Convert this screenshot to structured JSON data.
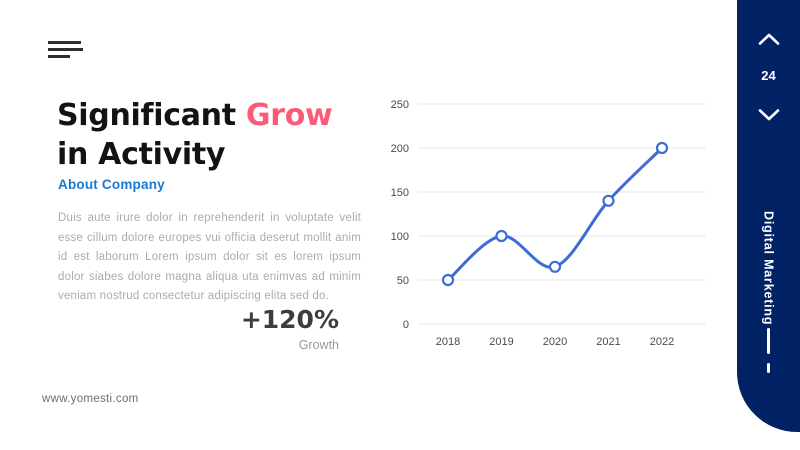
{
  "slide": {
    "title": {
      "line1_prefix": "Significant ",
      "line1_accent": "Grow",
      "line2": "in Activity"
    },
    "subtitle": "About Company",
    "body_text": "Duis aute irure dolor in reprehenderit in voluptate velit esse cillum dolore europes vui officia deserut mollit anim id est laborum Lorem ipsum dolor sit es lorem ipsum dolor siabes dolore magna aliqua uta enimvas ad minim veniam nostrud consectetur adipiscing elita sed do.",
    "stat": {
      "value": "+120%",
      "label": "Growth"
    },
    "website": "www.yomesti.com"
  },
  "sidebar": {
    "page_number": "24",
    "vertical_label": "Digital Marketing"
  },
  "icons": {
    "menu": "hamburger-icon",
    "nav_up": "chevron-up-icon",
    "nav_down": "chevron-down-icon",
    "chart_marker": "open-circle-marker"
  },
  "colors": {
    "accent_pink": "#FC5B77",
    "subtitle_blue": "#1779D2",
    "sidebar_navy": "#022266",
    "chart_line": "#3D6CD7",
    "gridline": "#E7E7E7",
    "tick_label": "#4A4A4A",
    "marker_fill": "#FFFFFF"
  },
  "chart_data": {
    "type": "line",
    "categories": [
      "2018",
      "2019",
      "2020",
      "2021",
      "2022"
    ],
    "series": [
      {
        "name": "Activity",
        "values": [
          50,
          100,
          65,
          140,
          200
        ]
      }
    ],
    "title": "",
    "xlabel": "",
    "ylabel": "",
    "ylim": [
      0,
      250
    ],
    "yticks": [
      0,
      50,
      100,
      150,
      200,
      250
    ],
    "grid": true,
    "legend": false,
    "smooth": true,
    "marker": "open-circle"
  }
}
